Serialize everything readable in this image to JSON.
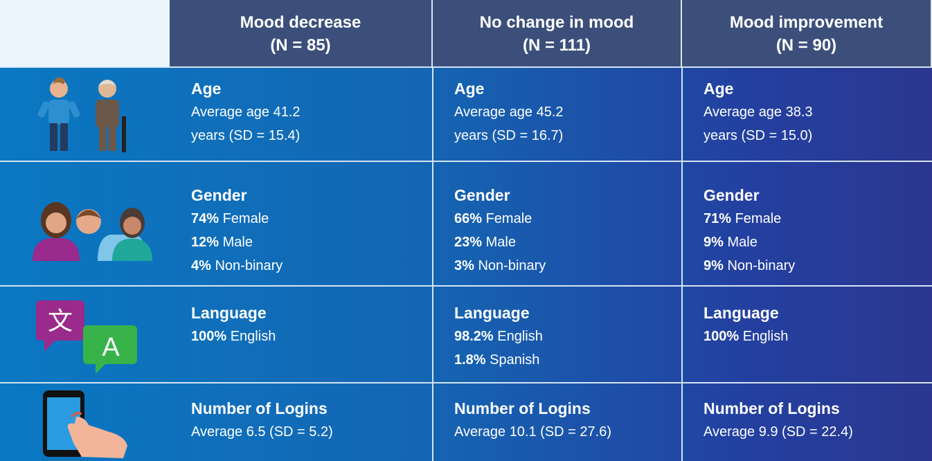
{
  "header": {
    "columns": [
      {
        "title": "Mood decrease",
        "n": "(N = 85)"
      },
      {
        "title": "No change in mood",
        "n": "(N = 111)"
      },
      {
        "title": "Mood improvement",
        "n": "(N = 90)"
      }
    ]
  },
  "rows": [
    {
      "cells": [
        {
          "title": "Age",
          "lines": [
            {
              "text": "Average age 41.2"
            },
            {
              "text": "years (SD = 15.4)"
            }
          ]
        },
        {
          "title": "Age",
          "lines": [
            {
              "text": "Average age 45.2"
            },
            {
              "text": "years (SD = 16.7)"
            }
          ]
        },
        {
          "title": "Age",
          "lines": [
            {
              "text": "Average age 38.3"
            },
            {
              "text": "years (SD = 15.0)"
            }
          ]
        }
      ]
    },
    {
      "cells": [
        {
          "title": "Gender",
          "lines": [
            {
              "bold": "74%",
              "text": "Female"
            },
            {
              "bold": "12%",
              "text": "Male"
            },
            {
              "bold": "4%",
              "text": "Non-binary"
            }
          ]
        },
        {
          "title": "Gender",
          "lines": [
            {
              "bold": "66%",
              "text": "Female"
            },
            {
              "bold": "23%",
              "text": "Male"
            },
            {
              "bold": "3%",
              "text": "Non-binary"
            }
          ]
        },
        {
          "title": "Gender",
          "lines": [
            {
              "bold": "71%",
              "text": "Female"
            },
            {
              "bold": "9%",
              "text": "Male"
            },
            {
              "bold": "9%",
              "text": "Non-binary"
            }
          ]
        }
      ]
    },
    {
      "cells": [
        {
          "title": "Language",
          "lines": [
            {
              "bold": "100%",
              "text": "English"
            }
          ]
        },
        {
          "title": "Language",
          "lines": [
            {
              "bold": "98.2%",
              "text": "English"
            },
            {
              "bold": "1.8%",
              "text": "Spanish"
            }
          ]
        },
        {
          "title": "Language",
          "lines": [
            {
              "bold": "100%",
              "text": "English"
            }
          ]
        }
      ]
    },
    {
      "cells": [
        {
          "title": "Number of Logins",
          "lines": [
            {
              "text": "Average 6.5 (SD = 5.2)"
            }
          ]
        },
        {
          "title": "Number of Logins",
          "lines": [
            {
              "text": "Average 10.1 (SD = 27.6)"
            }
          ]
        },
        {
          "title": "Number of Logins",
          "lines": [
            {
              "text": "Average 9.9 (SD = 22.4)"
            }
          ]
        }
      ]
    }
  ]
}
